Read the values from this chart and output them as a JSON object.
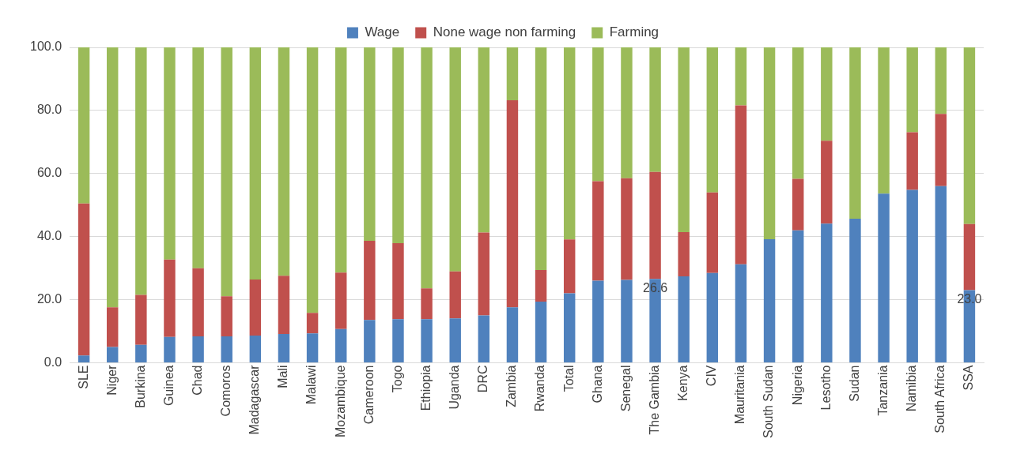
{
  "chart_data": {
    "type": "bar",
    "stacked": true,
    "legend": "top",
    "grid": "y",
    "categories": [
      "SLE",
      "Niger",
      "Burkina",
      "Guinea",
      "Chad",
      "Comoros",
      "Madagascar",
      "Mali",
      "Malawi",
      "Mozambique",
      "Cameroon",
      "Togo",
      "Ethiopia",
      "Uganda",
      "DRC",
      "Zambia",
      "Rwanda",
      "Total",
      "Ghana",
      "Senegal",
      "The Gambia",
      "Kenya",
      "CIV",
      "Mauritania",
      "South Sudan",
      "Nigeria",
      "Lesotho",
      "Sudan",
      "Tanzania",
      "Namibia",
      "South Africa",
      "SSA"
    ],
    "ylim": [
      0,
      100
    ],
    "yticks": [
      {
        "value": 0,
        "label": "0.0"
      },
      {
        "value": 20,
        "label": "20.0"
      },
      {
        "value": 40,
        "label": "40.0"
      },
      {
        "value": 60,
        "label": "60.0"
      },
      {
        "value": 80,
        "label": "80.0"
      },
      {
        "value": 100,
        "label": "100.0"
      }
    ],
    "series": [
      {
        "name": "Wage",
        "color": "#4f81bd",
        "values": [
          2.3,
          5.0,
          5.7,
          8.2,
          8.4,
          8.4,
          8.6,
          9.1,
          9.3,
          10.7,
          13.6,
          13.8,
          13.8,
          14.1,
          15.0,
          17.6,
          19.4,
          22.0,
          26.0,
          26.3,
          26.6,
          27.4,
          28.5,
          31.2,
          39.2,
          42.0,
          44.1,
          45.7,
          53.6,
          54.8,
          56.0,
          23.0
        ],
        "value_labels": [
          null,
          null,
          null,
          null,
          null,
          null,
          null,
          null,
          null,
          null,
          null,
          null,
          null,
          null,
          null,
          null,
          null,
          null,
          null,
          null,
          "26.6",
          null,
          null,
          null,
          null,
          null,
          null,
          null,
          null,
          null,
          null,
          "23.0"
        ]
      },
      {
        "name": "None wage non farming",
        "color": "#c0504d",
        "values": [
          48.2,
          12.6,
          15.8,
          24.5,
          21.6,
          12.7,
          17.8,
          18.5,
          6.5,
          17.9,
          25.1,
          24.1,
          9.8,
          14.9,
          26.3,
          65.6,
          10.0,
          17.1,
          31.6,
          32.2,
          33.9,
          14.0,
          25.5,
          50.4,
          0,
          16.3,
          26.3,
          0,
          0,
          18.3,
          22.9,
          21.0
        ]
      },
      {
        "name": "Farming",
        "color": "#9bbb59",
        "values": [
          49.5,
          82.4,
          78.5,
          67.3,
          70.0,
          78.9,
          73.6,
          72.4,
          84.2,
          71.4,
          61.3,
          62.1,
          76.4,
          71.0,
          58.7,
          16.8,
          70.6,
          60.9,
          42.4,
          41.5,
          39.5,
          58.6,
          46.0,
          18.4,
          60.8,
          41.7,
          29.6,
          54.3,
          46.4,
          26.9,
          21.1,
          56.0
        ]
      }
    ]
  }
}
